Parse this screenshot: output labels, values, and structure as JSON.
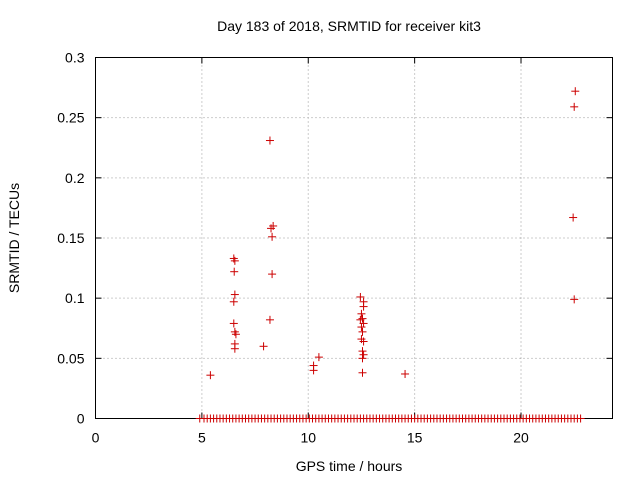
{
  "chart_data": {
    "type": "scatter",
    "title": "Day 183 of 2018, SRMTID for receiver kit3",
    "xlabel": "GPS time / hours",
    "ylabel": "SRMTID / TECUs",
    "xlim": [
      0,
      24.3
    ],
    "ylim": [
      0,
      0.3
    ],
    "xticks": [
      0,
      5,
      10,
      15,
      20
    ],
    "xtick_labels": [
      "0",
      "5",
      "10",
      "15",
      "20"
    ],
    "yticks": [
      0,
      0.05,
      0.1,
      0.15,
      0.2,
      0.25,
      0.3
    ],
    "ytick_labels": [
      "0",
      "0.05",
      "0.1",
      "0.15",
      "0.2",
      "0.25",
      "0.3"
    ],
    "grid": true,
    "marker": "+",
    "series": [
      {
        "name": "SRMTID kit3",
        "color": "#cc0000",
        "points": [
          [
            5.4,
            0.036
          ],
          [
            6.5,
            0.133
          ],
          [
            6.55,
            0.131
          ],
          [
            6.52,
            0.122
          ],
          [
            6.55,
            0.103
          ],
          [
            6.5,
            0.097
          ],
          [
            6.5,
            0.079
          ],
          [
            6.55,
            0.072
          ],
          [
            6.6,
            0.07
          ],
          [
            6.55,
            0.062
          ],
          [
            6.55,
            0.058
          ],
          [
            7.9,
            0.06
          ],
          [
            8.2,
            0.231
          ],
          [
            8.35,
            0.16
          ],
          [
            8.25,
            0.158
          ],
          [
            8.3,
            0.151
          ],
          [
            8.3,
            0.12
          ],
          [
            8.2,
            0.082
          ],
          [
            10.25,
            0.04
          ],
          [
            10.25,
            0.044
          ],
          [
            10.5,
            0.051
          ],
          [
            12.45,
            0.101
          ],
          [
            12.6,
            0.097
          ],
          [
            12.6,
            0.093
          ],
          [
            12.5,
            0.087
          ],
          [
            12.55,
            0.083
          ],
          [
            12.45,
            0.082
          ],
          [
            12.6,
            0.079
          ],
          [
            12.5,
            0.076
          ],
          [
            12.55,
            0.072
          ],
          [
            12.5,
            0.066
          ],
          [
            12.6,
            0.064
          ],
          [
            12.55,
            0.056
          ],
          [
            12.6,
            0.053
          ],
          [
            12.55,
            0.05
          ],
          [
            12.55,
            0.038
          ],
          [
            14.55,
            0.037
          ],
          [
            22.45,
            0.167
          ],
          [
            22.5,
            0.099
          ],
          [
            22.5,
            0.259
          ],
          [
            22.55,
            0.272
          ],
          [
            4.9,
            0
          ],
          [
            5.1,
            0
          ],
          [
            5.25,
            0
          ],
          [
            5.4,
            0
          ],
          [
            5.55,
            0
          ],
          [
            5.7,
            0
          ],
          [
            5.85,
            0
          ],
          [
            6.0,
            0
          ],
          [
            6.15,
            0
          ],
          [
            6.3,
            0
          ],
          [
            6.45,
            0
          ],
          [
            6.6,
            0
          ],
          [
            6.75,
            0
          ],
          [
            6.9,
            0
          ],
          [
            7.05,
            0
          ],
          [
            7.2,
            0
          ],
          [
            7.35,
            0
          ],
          [
            7.5,
            0
          ],
          [
            7.65,
            0
          ],
          [
            7.8,
            0
          ],
          [
            7.95,
            0
          ],
          [
            8.1,
            0
          ],
          [
            8.25,
            0
          ],
          [
            8.4,
            0
          ],
          [
            8.55,
            0
          ],
          [
            8.7,
            0
          ],
          [
            8.85,
            0
          ],
          [
            9.0,
            0
          ],
          [
            9.15,
            0
          ],
          [
            9.3,
            0
          ],
          [
            9.45,
            0
          ],
          [
            9.6,
            0
          ],
          [
            9.75,
            0
          ],
          [
            9.9,
            0
          ],
          [
            10.05,
            0
          ],
          [
            10.2,
            0
          ],
          [
            10.35,
            0
          ],
          [
            10.5,
            0
          ],
          [
            10.65,
            0
          ],
          [
            10.8,
            0
          ],
          [
            10.95,
            0
          ],
          [
            11.1,
            0
          ],
          [
            11.25,
            0
          ],
          [
            11.4,
            0
          ],
          [
            11.55,
            0
          ],
          [
            11.7,
            0
          ],
          [
            11.85,
            0
          ],
          [
            12.0,
            0
          ],
          [
            12.15,
            0
          ],
          [
            12.3,
            0
          ],
          [
            12.45,
            0
          ],
          [
            12.6,
            0
          ],
          [
            12.75,
            0
          ],
          [
            12.9,
            0
          ],
          [
            13.05,
            0
          ],
          [
            13.2,
            0
          ],
          [
            13.35,
            0
          ],
          [
            13.5,
            0
          ],
          [
            13.65,
            0
          ],
          [
            13.8,
            0
          ],
          [
            13.95,
            0
          ],
          [
            14.1,
            0
          ],
          [
            14.25,
            0
          ],
          [
            14.4,
            0
          ],
          [
            14.55,
            0
          ],
          [
            14.7,
            0
          ],
          [
            14.85,
            0
          ],
          [
            15.0,
            0
          ],
          [
            15.15,
            0
          ],
          [
            15.3,
            0
          ],
          [
            15.45,
            0
          ],
          [
            15.6,
            0
          ],
          [
            15.75,
            0
          ],
          [
            15.9,
            0
          ],
          [
            16.05,
            0
          ],
          [
            16.2,
            0
          ],
          [
            16.35,
            0
          ],
          [
            16.5,
            0
          ],
          [
            16.65,
            0
          ],
          [
            16.8,
            0
          ],
          [
            16.95,
            0
          ],
          [
            17.1,
            0
          ],
          [
            17.25,
            0
          ],
          [
            17.4,
            0
          ],
          [
            17.55,
            0
          ],
          [
            17.7,
            0
          ],
          [
            17.85,
            0
          ],
          [
            18.0,
            0
          ],
          [
            18.15,
            0
          ],
          [
            18.3,
            0
          ],
          [
            18.45,
            0
          ],
          [
            18.6,
            0
          ],
          [
            18.75,
            0
          ],
          [
            18.9,
            0
          ],
          [
            19.05,
            0
          ],
          [
            19.2,
            0
          ],
          [
            19.35,
            0
          ],
          [
            19.5,
            0
          ],
          [
            19.65,
            0
          ],
          [
            19.8,
            0
          ],
          [
            19.95,
            0
          ],
          [
            20.1,
            0
          ],
          [
            20.25,
            0
          ],
          [
            20.4,
            0
          ],
          [
            20.55,
            0
          ],
          [
            20.7,
            0
          ],
          [
            20.85,
            0
          ],
          [
            21.0,
            0
          ],
          [
            21.15,
            0
          ],
          [
            21.3,
            0
          ],
          [
            21.45,
            0
          ],
          [
            21.6,
            0
          ],
          [
            21.75,
            0
          ],
          [
            21.9,
            0
          ],
          [
            22.05,
            0
          ],
          [
            22.2,
            0
          ],
          [
            22.35,
            0
          ],
          [
            22.5,
            0
          ],
          [
            22.65,
            0
          ],
          [
            22.8,
            0
          ]
        ]
      }
    ]
  }
}
